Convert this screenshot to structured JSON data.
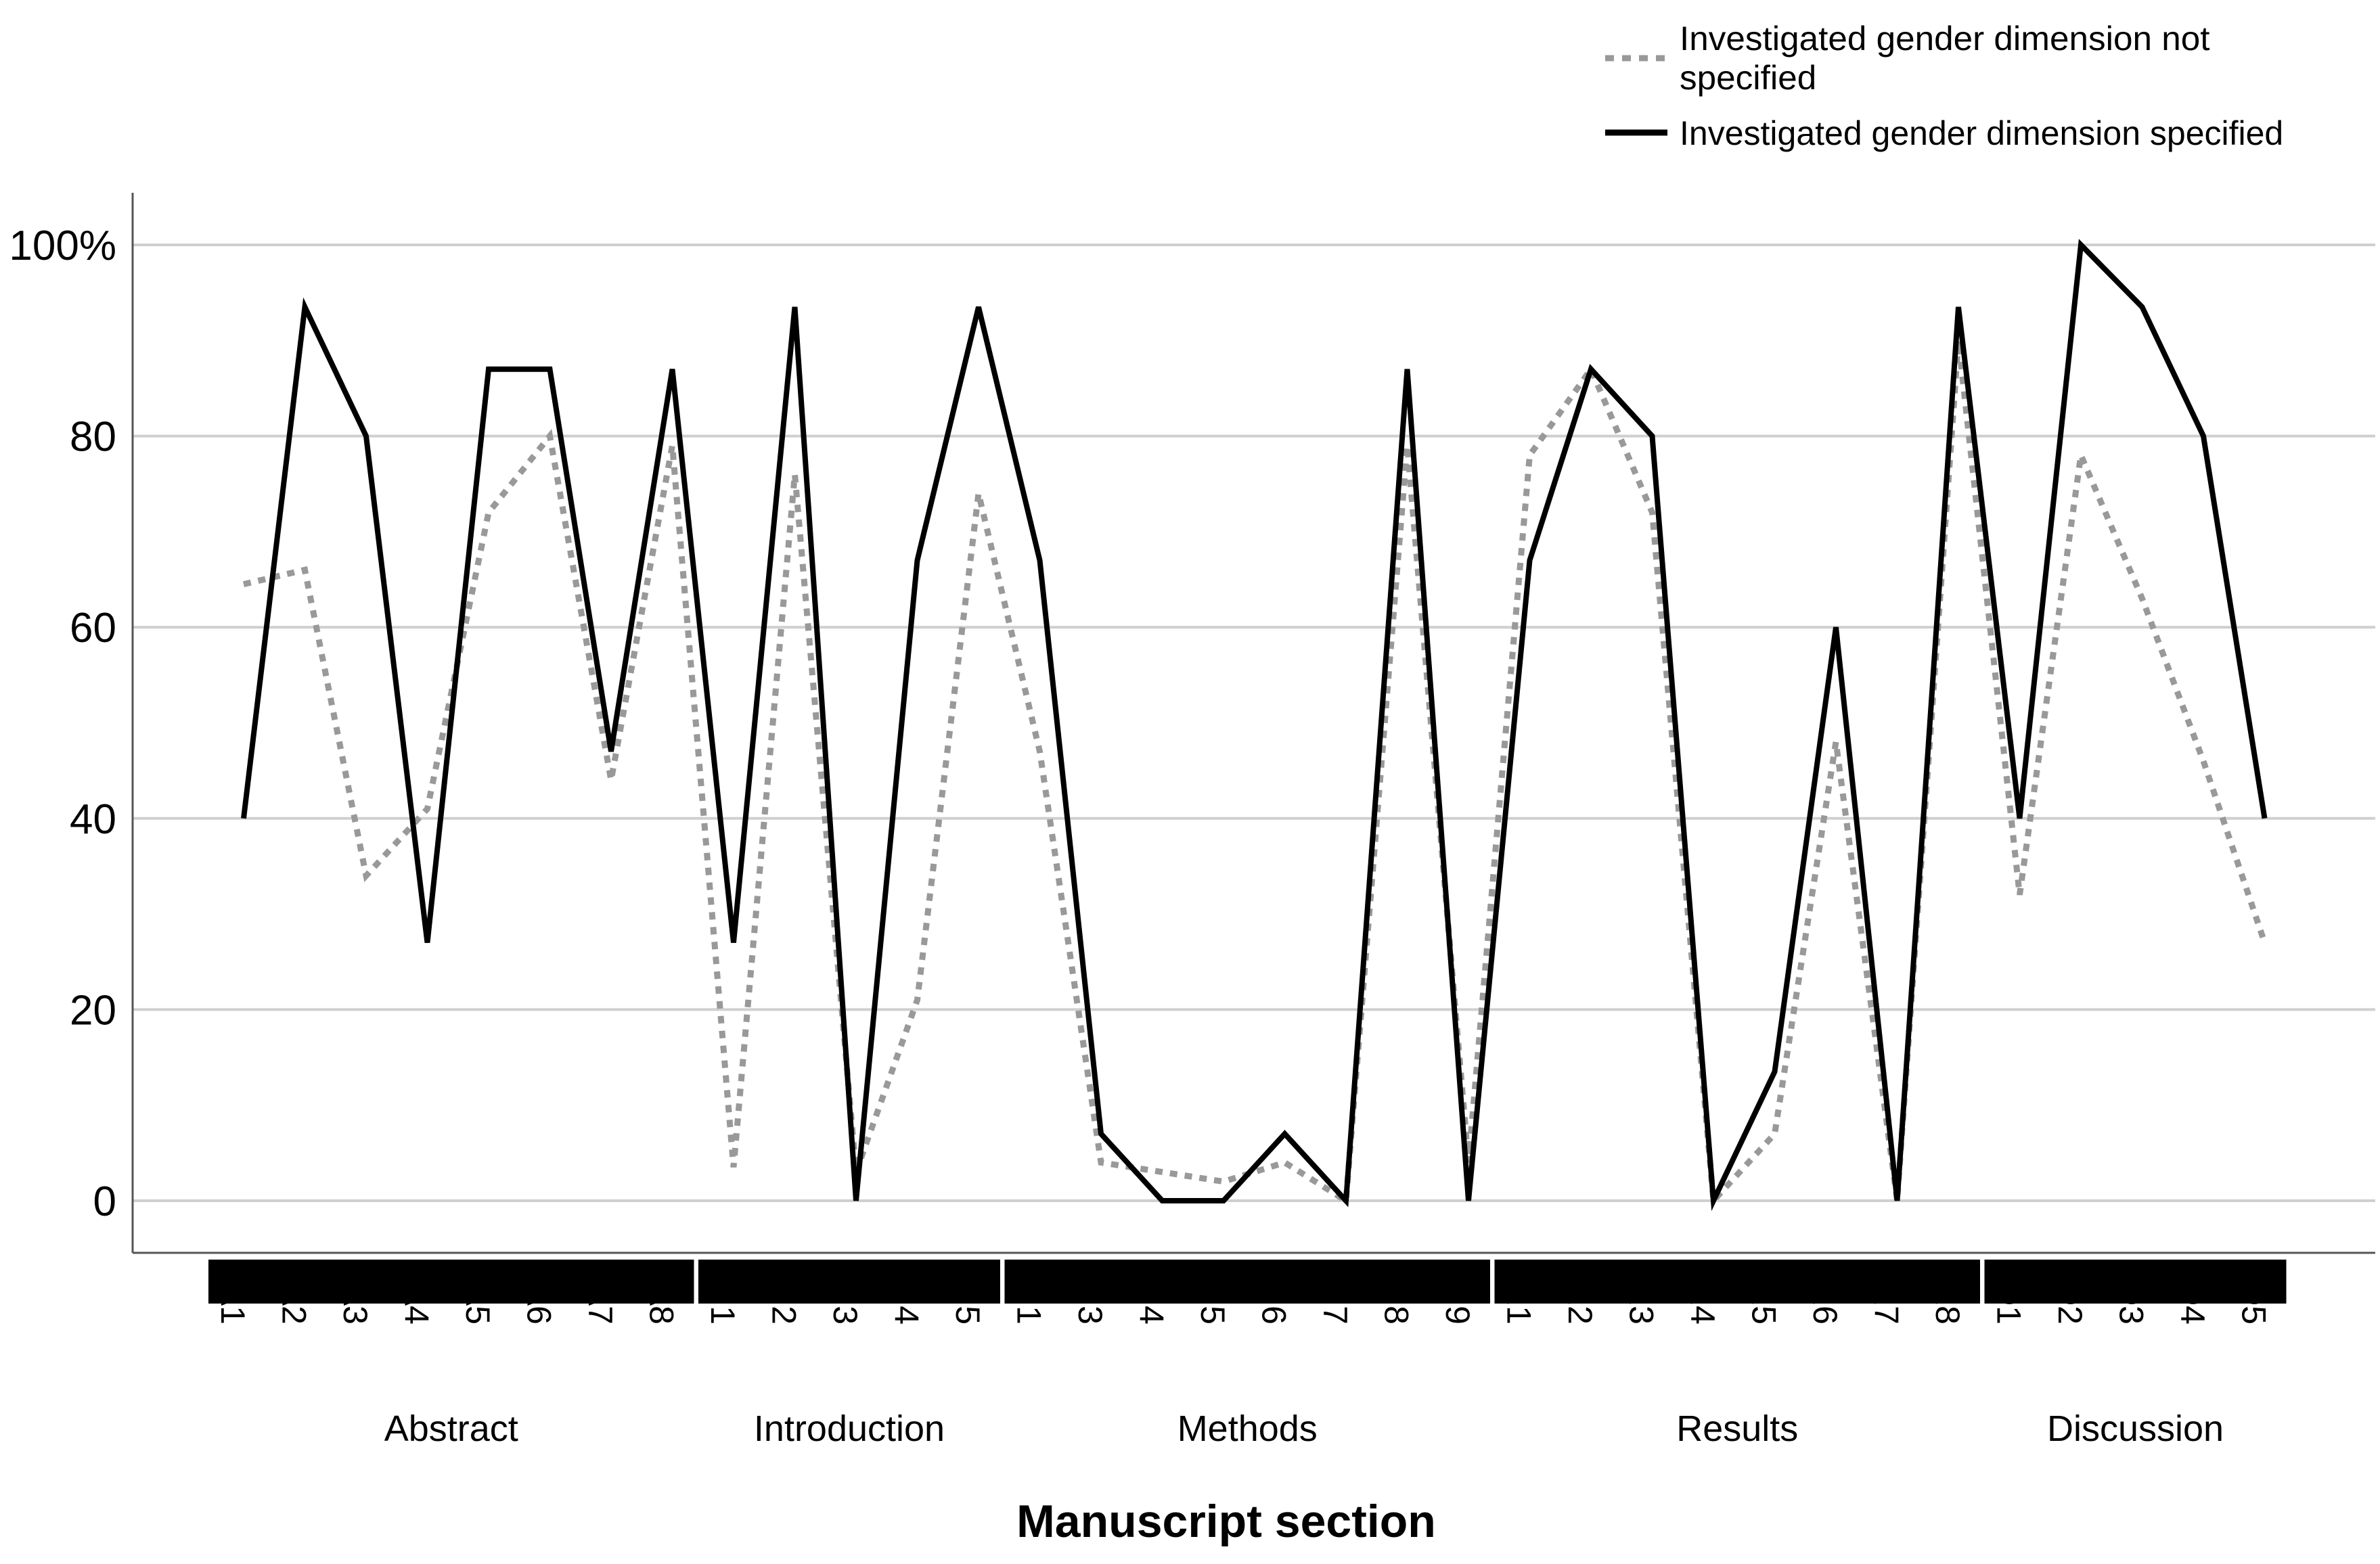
{
  "chart_data": {
    "type": "line",
    "xlabel": "Manuscript section",
    "ylabel": "",
    "ylim": [
      0,
      100
    ],
    "yticks": [
      0,
      20,
      40,
      60,
      80,
      100
    ],
    "ytick_labels": [
      "0",
      "20",
      "40",
      "60",
      "80",
      "100%"
    ],
    "grid": true,
    "legend_position": "top-right",
    "categories": [
      "A1",
      "A2",
      "A3",
      "A4",
      "A5",
      "A6",
      "A7",
      "A8",
      "I1",
      "I2",
      "I3",
      "I4",
      "I5",
      "M1",
      "M3",
      "M4",
      "M5",
      "M6",
      "M7",
      "M8",
      "M9",
      "R1",
      "R2",
      "R3",
      "R4",
      "R5",
      "R6",
      "R7",
      "R8",
      "D1",
      "D2",
      "D3",
      "D4",
      "D5"
    ],
    "groups": [
      {
        "label": "Abstract",
        "start": 0,
        "end": 7
      },
      {
        "label": "Introduction",
        "start": 8,
        "end": 12
      },
      {
        "label": "Methods",
        "start": 13,
        "end": 20
      },
      {
        "label": "Results",
        "start": 21,
        "end": 28
      },
      {
        "label": "Discussion",
        "start": 29,
        "end": 33
      }
    ],
    "series": [
      {
        "name": "Investigated gender dimension not specified",
        "style": "dotted",
        "color": "#999999",
        "values": [
          64.5,
          66,
          34,
          41,
          72,
          80,
          44,
          79,
          3.5,
          76,
          3,
          21,
          74,
          47,
          4,
          3,
          2,
          4,
          0,
          79,
          4,
          78,
          87,
          72,
          0,
          7,
          48,
          0,
          90,
          32,
          78,
          63,
          46,
          27
        ]
      },
      {
        "name": "Investigated gender dimension specified",
        "style": "solid",
        "color": "#000000",
        "values": [
          40,
          93.5,
          80,
          27,
          87,
          87,
          47,
          87,
          27,
          93.5,
          0,
          67,
          93.5,
          67,
          7,
          0,
          0,
          7,
          0,
          87,
          0,
          67,
          87,
          80,
          0,
          13.5,
          60,
          0,
          93.5,
          40,
          100,
          93.5,
          80,
          40
        ]
      }
    ]
  }
}
